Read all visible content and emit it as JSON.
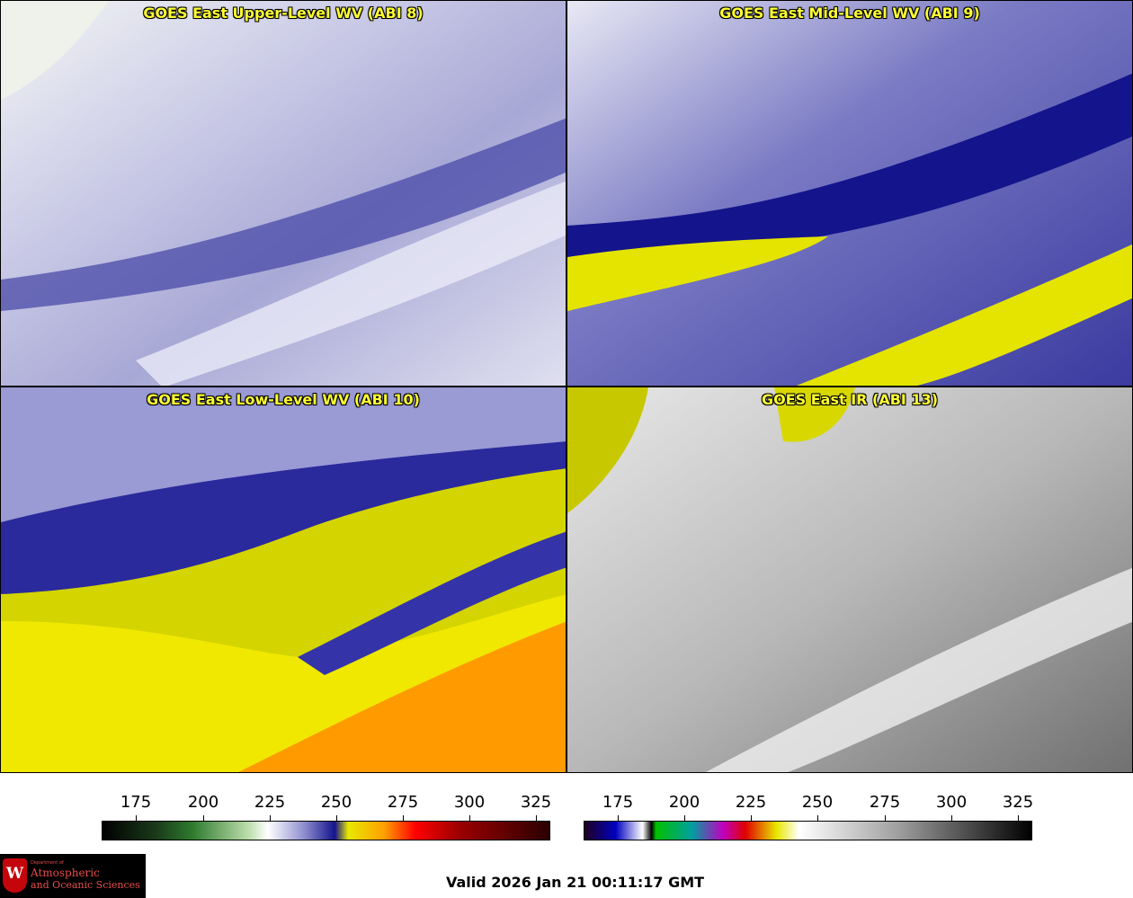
{
  "panels": [
    {
      "title": "GOES East Upper-Level WV (ABI 8)"
    },
    {
      "title": "GOES East Mid-Level WV (ABI 9)"
    },
    {
      "title": "GOES East Low-Level WV (ABI 10)"
    },
    {
      "title": "GOES East IR (ABI 13)"
    }
  ],
  "colorbars": {
    "wv": {
      "ticks": [
        "175",
        "200",
        "225",
        "250",
        "275",
        "300",
        "325"
      ]
    },
    "ir": {
      "ticks": [
        "175",
        "200",
        "225",
        "250",
        "275",
        "300",
        "325"
      ]
    }
  },
  "valid_time": "Valid 2026 Jan 21 00:11:17 GMT",
  "logo": {
    "department": "Department of",
    "line1": "Atmospheric",
    "line2": "and Oceanic Sciences"
  },
  "colors": {
    "border_state": "#e02020",
    "border_country": "#7a5a00",
    "title": "#ffff33",
    "wv_moist": "#f0f0f8",
    "wv_dry": "#14148c",
    "wv_very_dry": "#e6e600"
  }
}
